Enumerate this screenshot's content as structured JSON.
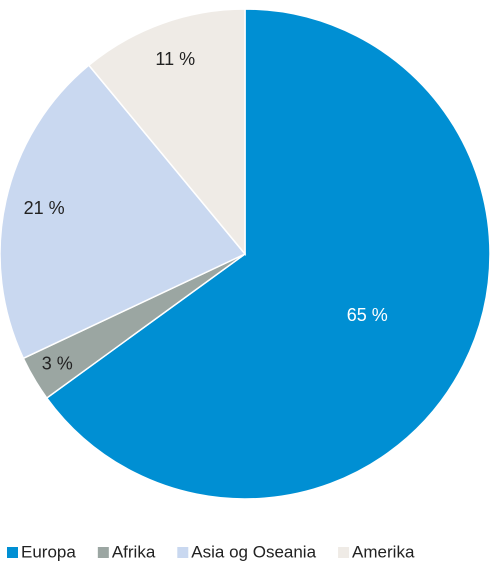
{
  "chart_data": {
    "type": "pie",
    "categories": [
      "Europa",
      "Afrika",
      "Asia og Oseania",
      "Amerika"
    ],
    "values": [
      65,
      3,
      21,
      11
    ],
    "value_labels": [
      "65 %",
      "3 %",
      "21 %",
      "11 %"
    ],
    "colors": [
      "#008fd3",
      "#9ba6a2",
      "#c9d8f0",
      "#efebe6"
    ],
    "label_colors": [
      "#ffffff",
      "#222222",
      "#222222",
      "#222222"
    ],
    "legend": "bottom"
  }
}
